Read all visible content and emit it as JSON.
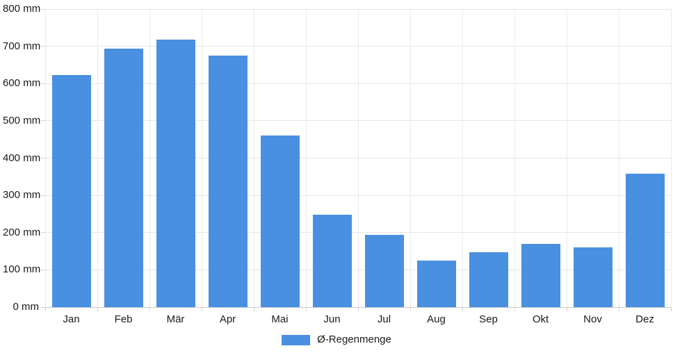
{
  "chart_data": {
    "type": "bar",
    "title": "",
    "categories": [
      "Jan",
      "Feb",
      "Mär",
      "Apr",
      "Mai",
      "Jun",
      "Jul",
      "Aug",
      "Sep",
      "Okt",
      "Nov",
      "Dez"
    ],
    "series": [
      {
        "name": "Ø-Regenmenge",
        "values": [
          622,
          694,
          718,
          676,
          460,
          248,
          194,
          125,
          147,
          170,
          160,
          359
        ]
      }
    ],
    "unit": "mm",
    "ylim": [
      0,
      800
    ],
    "ytick_values": [
      0,
      100,
      200,
      300,
      400,
      500,
      600,
      700,
      800
    ],
    "ytick_labels": [
      "0 mm",
      "100 mm",
      "200 mm",
      "300 mm",
      "400 mm",
      "500 mm",
      "600 mm",
      "700 mm",
      "800 mm"
    ],
    "grid": "horizontal-and-vertical",
    "legend_position": "bottom-center",
    "bar_color": "#4a90e0",
    "gridline_color": "#e6e6e6",
    "axis_color": "#c9c9c9",
    "text_color": "#1a1a1a"
  },
  "legend": {
    "label": "Ø-Regenmenge",
    "swatch_color": "#4a90e0"
  }
}
